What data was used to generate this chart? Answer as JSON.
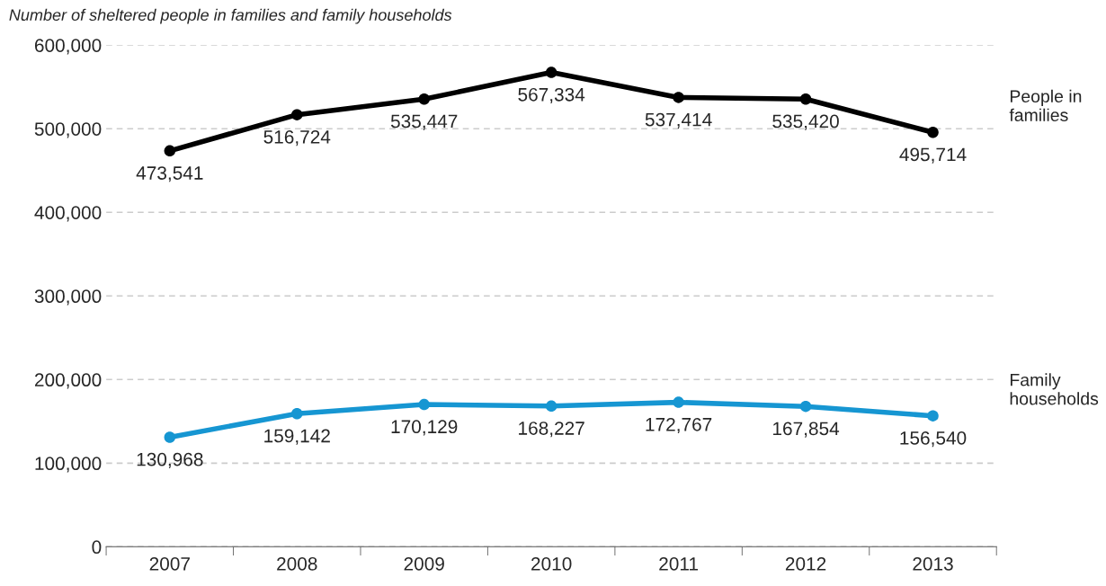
{
  "chart_data": {
    "type": "line",
    "title": "Number of sheltered people in families and family households",
    "categories": [
      "2007",
      "2008",
      "2009",
      "2010",
      "2011",
      "2012",
      "2013"
    ],
    "series": [
      {
        "name": "People in families",
        "color": "#000000",
        "values": [
          473541,
          516724,
          535447,
          567334,
          537414,
          535420,
          495714
        ],
        "value_labels": [
          "473,541",
          "516,724",
          "535,447",
          "567,334",
          "537,414",
          "535,420",
          "495,714"
        ]
      },
      {
        "name": "Family households",
        "color": "#1696d2",
        "values": [
          130968,
          159142,
          170129,
          168227,
          172767,
          167854,
          156540
        ],
        "value_labels": [
          "130,968",
          "159,142",
          "170,129",
          "168,227",
          "172,767",
          "167,854",
          "156,540"
        ]
      }
    ],
    "ylim": [
      0,
      600000
    ],
    "yticks": [
      0,
      {
        "value": 100000,
        "label": "100,000"
      },
      {
        "value": 200000,
        "label": "200,000"
      },
      {
        "value": 300000,
        "label": "300,000"
      },
      {
        "value": 400000,
        "label": "400,000"
      },
      {
        "value": 500000,
        "label": "500,000"
      },
      {
        "value": 600000,
        "label": "600,000"
      }
    ],
    "grid": "y",
    "marker": "circle",
    "line_style": "solid"
  }
}
